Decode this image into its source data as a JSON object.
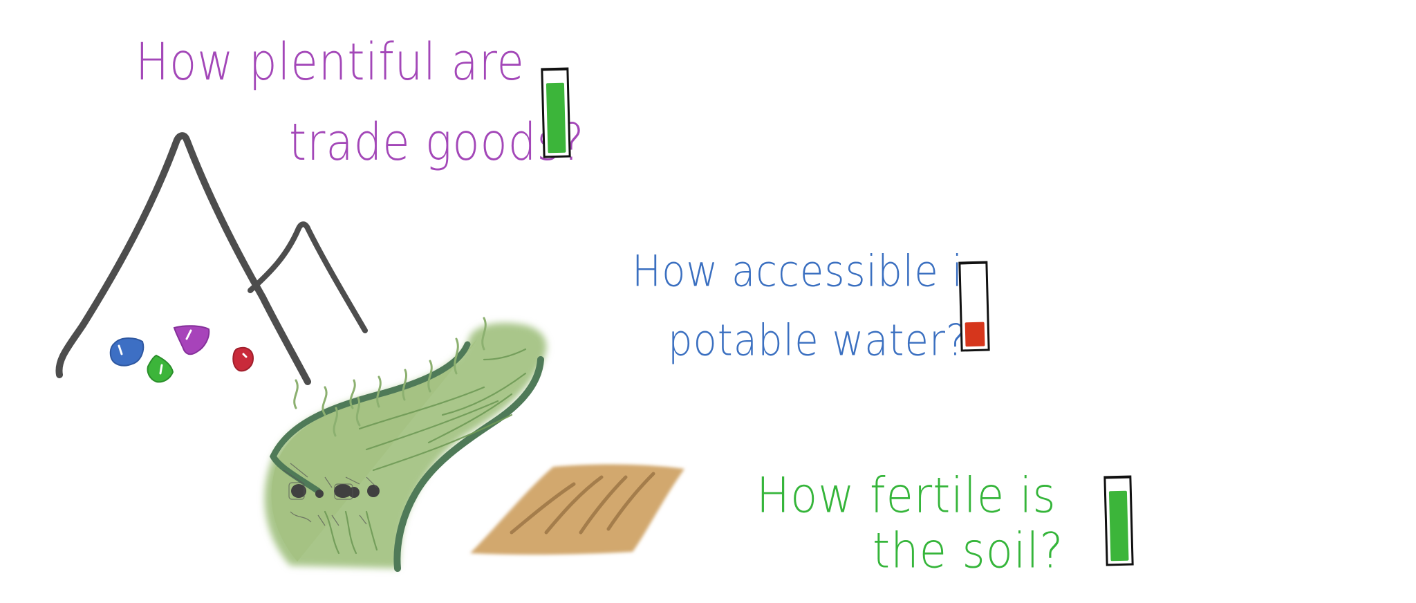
{
  "questions": {
    "trade_goods": {
      "line1": "How plentiful are",
      "line2": "trade goods?",
      "level": 0.88,
      "color": "#3cb53a"
    },
    "water": {
      "line1": "How accessible is",
      "line2": "potable water?",
      "level": 0.3,
      "color": "#d6361c"
    },
    "soil": {
      "line1": "How fertile is",
      "line2": "the soil?",
      "level": 0.88,
      "color": "#3cb53a"
    }
  },
  "illustrations": {
    "mountains": "mountain-icon",
    "gems": [
      "blue-gem-icon",
      "purple-gem-icon",
      "green-gem-icon",
      "red-gem-icon"
    ],
    "river": "river-icon",
    "field": "plowed-field-icon"
  }
}
